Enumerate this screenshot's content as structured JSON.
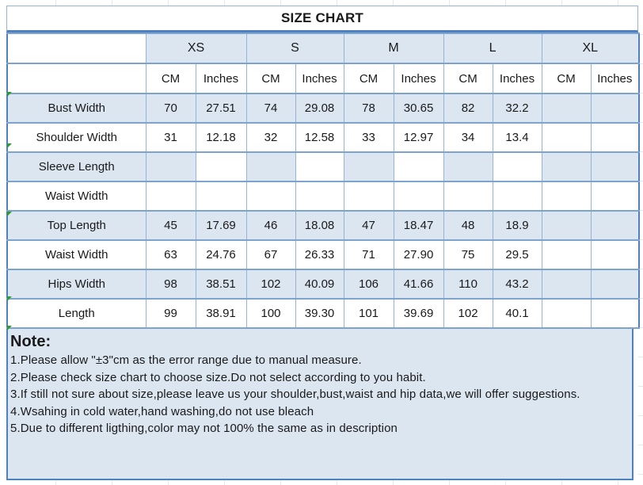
{
  "sheet": {
    "title": "SIZE CHART"
  },
  "header": {
    "sizes": [
      "XS",
      "S",
      "M",
      "L",
      "XL"
    ],
    "cm": "CM",
    "inches": "Inches"
  },
  "table": {
    "measure_rows": [
      {
        "label": "Bust Width",
        "fills": "bbbbbbbbbbb",
        "values": [
          "70",
          "27.51",
          "74",
          "29.08",
          "78",
          "30.65",
          "82",
          "32.2",
          "",
          ""
        ]
      },
      {
        "label": "Shoulder Width",
        "fills": "wwwwwwwwwww",
        "values": [
          "31",
          "12.18",
          "32",
          "12.58",
          "33",
          "12.97",
          "34",
          "13.4",
          "",
          ""
        ]
      },
      {
        "label": "Sleeve Length",
        "fills": "bbwbwbwbwbb",
        "values": [
          "",
          "",
          "",
          "",
          "",
          "",
          "",
          "",
          "",
          ""
        ]
      },
      {
        "label": "Waist Width",
        "fills": "wwwwwwwwwww",
        "values": [
          "",
          "",
          "",
          "",
          "",
          "",
          "",
          "",
          "",
          ""
        ]
      },
      {
        "label": "Top Length",
        "fills": "bbbbbbbbbbb",
        "values": [
          "45",
          "17.69",
          "46",
          "18.08",
          "47",
          "18.47",
          "48",
          "18.9",
          "",
          ""
        ]
      },
      {
        "label": "Waist Width",
        "fills": "wwwwwwwwwww",
        "values": [
          "63",
          "24.76",
          "67",
          "26.33",
          "71",
          "27.90",
          "75",
          "29.5",
          "",
          ""
        ]
      },
      {
        "label": "Hips Width",
        "fills": "bbbbbbbbbbb",
        "values": [
          "98",
          "38.51",
          "102",
          "40.09",
          "106",
          "41.66",
          "110",
          "43.2",
          "",
          ""
        ]
      },
      {
        "label": "Length",
        "fills": "wwwwwwwwwww",
        "values": [
          "99",
          "38.91",
          "100",
          "39.30",
          "101",
          "39.69",
          "102",
          "40.1",
          "",
          ""
        ]
      }
    ]
  },
  "note": {
    "heading": "Note:",
    "lines": [
      "1.Please allow \"±3\"cm as the error range due to manual measure.",
      "2.Please check size chart to choose size.Do not select according to you habit.",
      "3.If still not sure about size,please leave us your shoulder,bust,waist and hip data,we will offer suggestions.",
      "4.Wsahing in cold water,hand washing,do not use bleach",
      "5.Due to different ligthing,color may not 100% the same as in description"
    ]
  },
  "colors": {
    "fill_blue": "#dce6f1",
    "fill_white": "#ffffff",
    "border_light": "#95b3d7",
    "border_medium": "#7da3cf",
    "frame": "#4f81bd",
    "gridline": "#e2e8f1",
    "error_triangle_green": "#2e9b2e",
    "text": "#1a1a1a"
  }
}
